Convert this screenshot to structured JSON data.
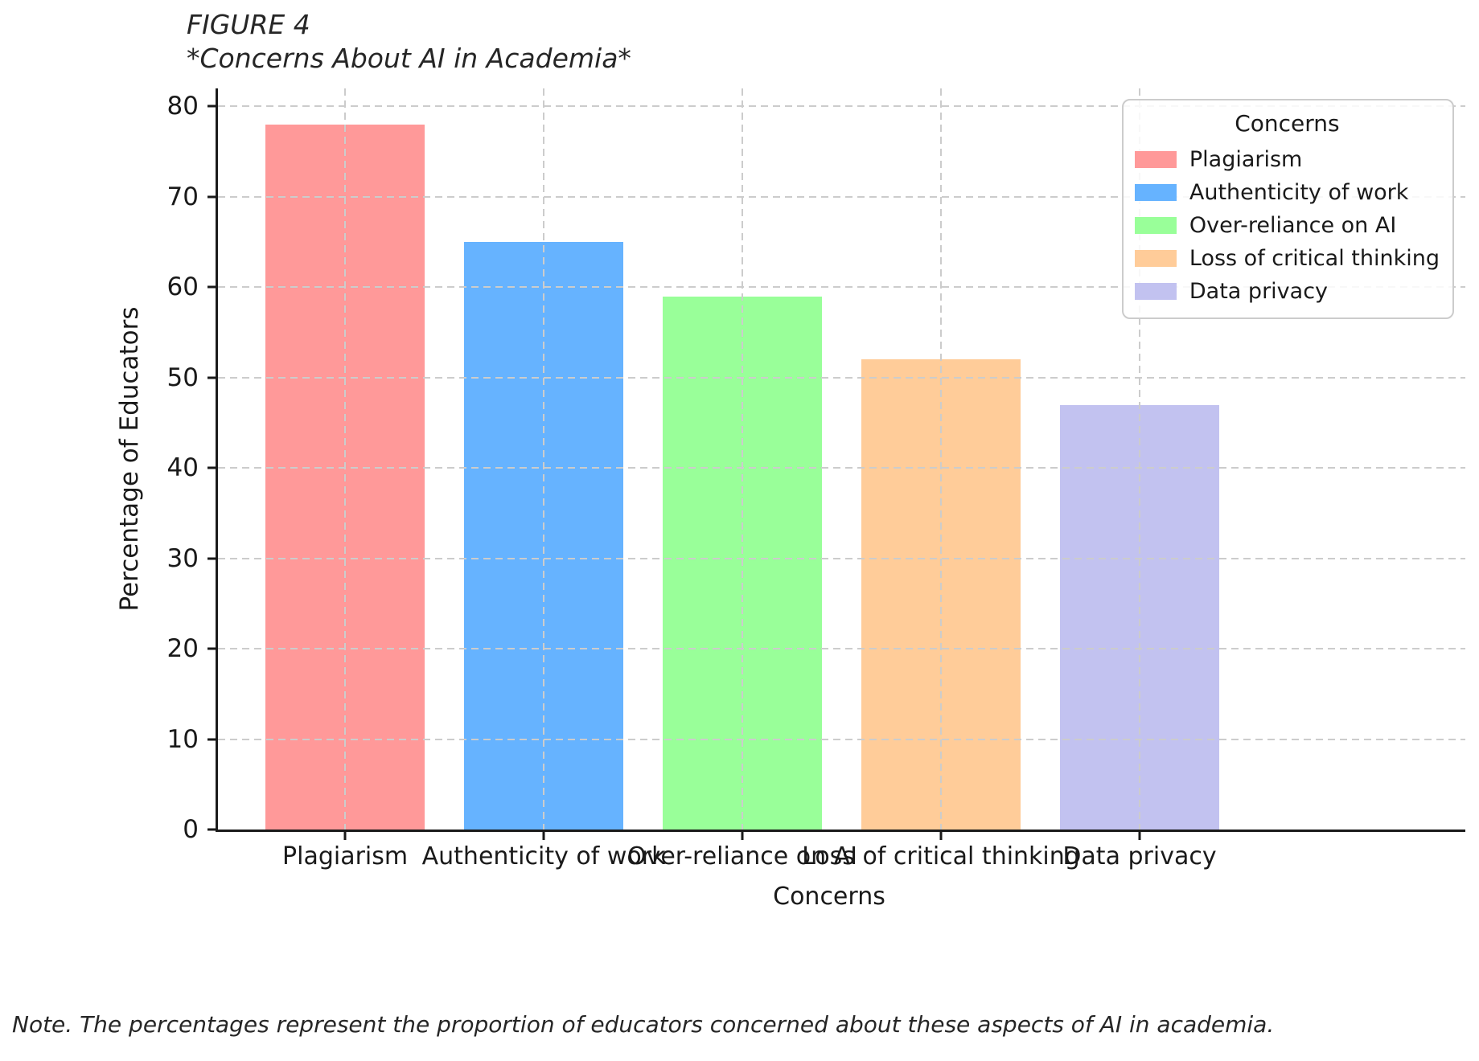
{
  "figure": {
    "label": "FIGURE 4",
    "subtitle": "*Concerns About AI in Academia*",
    "note": "Note. The percentages represent the proportion of educators concerned about these aspects of AI in academia."
  },
  "chart_data": {
    "type": "bar",
    "title": "FIGURE 4 *Concerns About AI in Academia*",
    "categories": [
      "Plagiarism",
      "Authenticity of work",
      "Over-reliance on AI",
      "Loss of critical thinking",
      "Data privacy"
    ],
    "values": [
      78,
      65,
      59,
      52,
      47
    ],
    "bar_colors": [
      "#ff9999",
      "#66b3ff",
      "#99ff99",
      "#ffcc99",
      "#c2c2f0"
    ],
    "xlabel": "Concerns",
    "ylabel": "Percentage of Educators",
    "ylim": [
      0,
      82
    ],
    "yticks": [
      0,
      10,
      20,
      30,
      40,
      50,
      60,
      70,
      80
    ],
    "grid": "dashed-both-axes-drawn-above-bars",
    "grid_color": "#cccccc",
    "axis_color": "#1a1a1a",
    "legend": {
      "title": "Concerns",
      "position": "upper right",
      "entries": [
        {
          "label": "Plagiarism",
          "color": "#ff9999"
        },
        {
          "label": "Authenticity of work",
          "color": "#66b3ff"
        },
        {
          "label": "Over-reliance on AI",
          "color": "#99ff99"
        },
        {
          "label": "Loss of critical thinking",
          "color": "#ffcc99"
        },
        {
          "label": "Data privacy",
          "color": "#c2c2f0"
        }
      ]
    }
  }
}
